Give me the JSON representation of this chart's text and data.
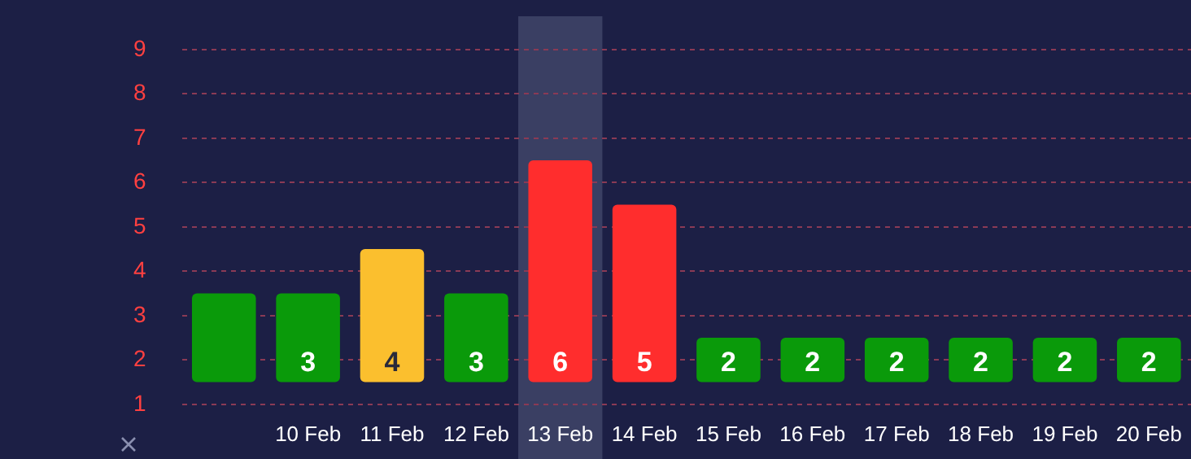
{
  "chart_data": {
    "type": "bar",
    "categories": [
      null,
      "10 Feb",
      "11 Feb",
      "12 Feb",
      "13 Feb",
      "14 Feb",
      "15 Feb",
      "16 Feb",
      "17 Feb",
      "18 Feb",
      "19 Feb",
      "20 Feb"
    ],
    "base": [
      1.5,
      1.5,
      1.5,
      1.5,
      1.5,
      1.5,
      1.5,
      1.5,
      1.5,
      1.5,
      1.5,
      1.5
    ],
    "values": [
      2,
      2,
      3,
      2,
      5,
      4,
      1,
      1,
      1,
      1,
      1,
      1
    ],
    "colors": [
      "#0a9a0a",
      "#0a9a0a",
      "#fbbf2e",
      "#0a9a0a",
      "#ff2d2d",
      "#ff2d2d",
      "#0a9a0a",
      "#0a9a0a",
      "#0a9a0a",
      "#0a9a0a",
      "#0a9a0a",
      "#0a9a0a"
    ],
    "value_labels": [
      null,
      "3",
      "4",
      "3",
      "6",
      "5",
      "2",
      "2",
      "2",
      "2",
      "2",
      "2"
    ],
    "ylim": [
      1,
      9
    ],
    "yticks": [
      1,
      2,
      3,
      4,
      5,
      6,
      7,
      8,
      9
    ],
    "grid": "y",
    "bands": [
      {
        "axis": "x",
        "from": "13 Feb",
        "to": "13 Feb",
        "color": "#3a3f63"
      }
    ]
  }
}
